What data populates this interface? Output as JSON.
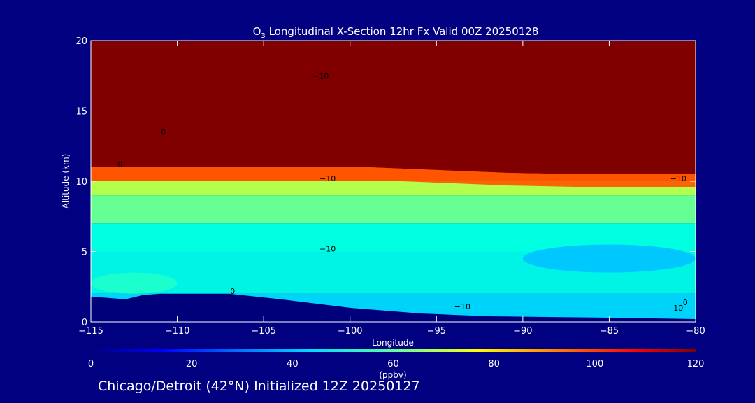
{
  "chart_data": {
    "type": "heatmap",
    "title": "O3 Longitudinal X-Section 12hr  Fx Valid 00Z 20250128",
    "title_parts": {
      "pre": "O",
      "sub": "3",
      "post": " Longitudinal X-Section 12hr  Fx Valid 00Z 20250128"
    },
    "xlabel": "Longitude",
    "ylabel": "Altitude (km)",
    "xlim": [
      -115,
      -80
    ],
    "ylim": [
      0,
      20
    ],
    "x_ticks": [
      "−115",
      "−110",
      "−105",
      "−100",
      "−95",
      "−90",
      "−85",
      "−80"
    ],
    "x_tick_values": [
      -115,
      -110,
      -105,
      -100,
      -95,
      -90,
      -85,
      -80
    ],
    "y_ticks": [
      "0",
      "5",
      "10",
      "15",
      "20"
    ],
    "y_tick_values": [
      0,
      5,
      10,
      15,
      20
    ],
    "colorbar": {
      "label": "(ppbv)",
      "range": [
        0,
        120
      ],
      "ticks": [
        "0",
        "20",
        "40",
        "60",
        "80",
        "100",
        "120"
      ],
      "tick_values": [
        0,
        20,
        40,
        60,
        80,
        100,
        120
      ]
    },
    "tropopause_km": [
      [
        -115,
        11.0
      ],
      [
        -111,
        11.0
      ],
      [
        -107,
        11.0
      ],
      [
        -103,
        11.0
      ],
      [
        -99,
        11.0
      ],
      [
        -95,
        10.8
      ],
      [
        -91,
        10.6
      ],
      [
        -87,
        10.5
      ],
      [
        -83,
        10.5
      ],
      [
        -80,
        10.5
      ]
    ],
    "ozone_layers_ppbv": [
      {
        "alt_km": [
          0,
          2
        ],
        "value": 42
      },
      {
        "alt_km": [
          2,
          5
        ],
        "value": 48
      },
      {
        "alt_km": [
          5,
          7
        ],
        "value": 50
      },
      {
        "alt_km": [
          7,
          9
        ],
        "value": 58
      },
      {
        "alt_km": [
          9,
          10
        ],
        "value": 66
      },
      {
        "alt_km": [
          10,
          11
        ],
        "value": 95
      },
      {
        "alt_km": [
          11,
          20
        ],
        "value": 120
      }
    ],
    "low_ozone_regions": [
      {
        "lon": [
          -90,
          -80
        ],
        "alt_km": [
          3.5,
          5.5
        ],
        "value": 40
      },
      {
        "lon": [
          -115,
          -110
        ],
        "alt_km": [
          2.0,
          3.5
        ],
        "value": 52
      }
    ],
    "terrain_km": [
      [
        -115,
        1.8
      ],
      [
        -113,
        1.6
      ],
      [
        -112,
        1.9
      ],
      [
        -111,
        2.0
      ],
      [
        -107,
        2.0
      ],
      [
        -104,
        1.6
      ],
      [
        -100,
        1.0
      ],
      [
        -96,
        0.6
      ],
      [
        -92,
        0.4
      ],
      [
        -85,
        0.3
      ],
      [
        -80,
        0.2
      ]
    ],
    "contour_labels": [
      {
        "text": "0",
        "lon": -110.8,
        "alt_km": 13.3
      },
      {
        "text": "−10",
        "lon": -101.7,
        "alt_km": 17.3
      },
      {
        "text": "0",
        "lon": -113.3,
        "alt_km": 11.0
      },
      {
        "text": "−10",
        "lon": -101.3,
        "alt_km": 10.0
      },
      {
        "text": "−10",
        "lon": -81.0,
        "alt_km": 10.0
      },
      {
        "text": "−10",
        "lon": -101.3,
        "alt_km": 5.0
      },
      {
        "text": "0",
        "lon": -106.8,
        "alt_km": 2.0
      },
      {
        "text": "−10",
        "lon": -93.5,
        "alt_km": 0.9
      },
      {
        "text": "10",
        "lon": -81.0,
        "alt_km": 0.8
      },
      {
        "text": "0",
        "lon": -80.6,
        "alt_km": 1.2
      }
    ]
  },
  "footer_text": "Chicago/Detroit (42°N) Initialized 12Z 20250127"
}
